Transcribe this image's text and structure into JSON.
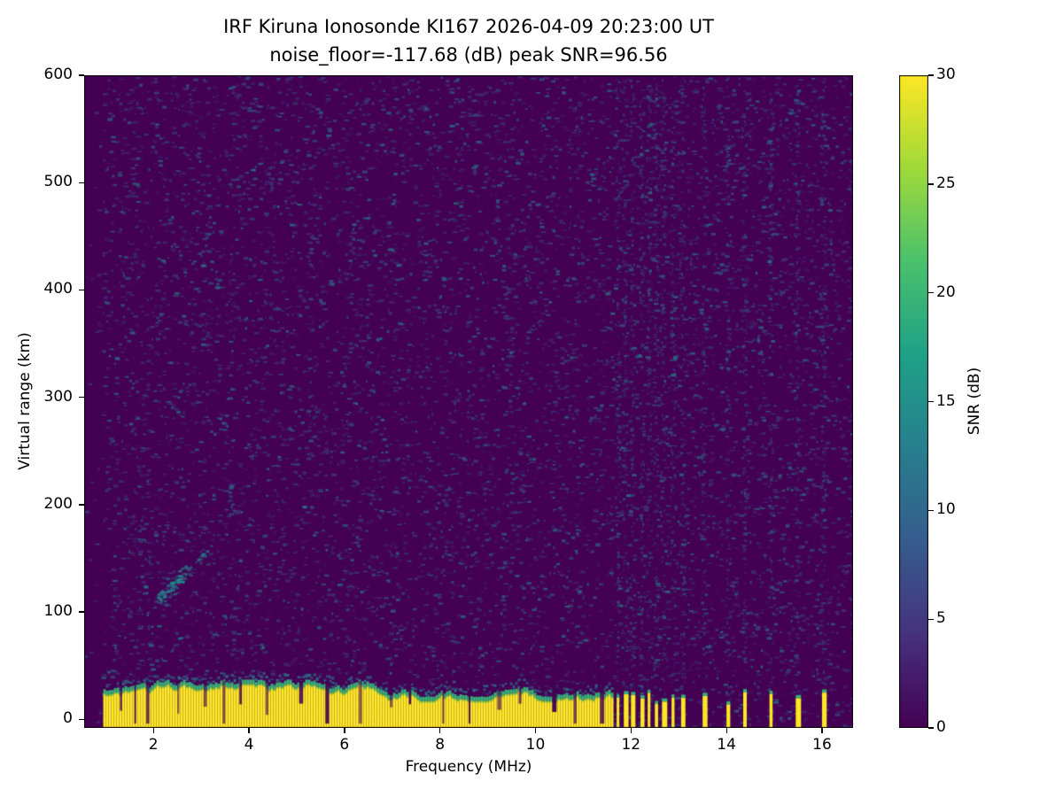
{
  "chart_data": {
    "type": "heatmap",
    "title": "IRF Kiruna Ionosonde KI167 2026-04-09 20:23:00  UT",
    "subtitle": "noise_floor=-117.68 (dB) peak SNR=96.56",
    "xlabel": "Frequency (MHz)",
    "ylabel": "Virtual range (km)",
    "x_range_mhz": [
      0.55,
      16.65
    ],
    "y_range_km": [
      -8,
      600
    ],
    "x_ticks": [
      2,
      4,
      6,
      8,
      10,
      12,
      14,
      16
    ],
    "y_ticks": [
      0,
      100,
      200,
      300,
      400,
      500,
      600
    ],
    "colorbar": {
      "label": "SNR (dB)",
      "range_db": [
        0,
        30
      ],
      "ticks": [
        0,
        5,
        10,
        15,
        20,
        25,
        30
      ],
      "colormap": "viridis"
    },
    "viridis_stops": [
      "#440154",
      "#46327e",
      "#365c8d",
      "#277f8e",
      "#1fa187",
      "#4ac16d",
      "#a0da39",
      "#fde725"
    ],
    "station": "IRF Kiruna Ionosonde KI167",
    "timestamp_ut": "2026-04-09 20:23:00 UT",
    "noise_floor_db": -117.68,
    "peak_snr_db": 96.56,
    "features": {
      "ground_clutter_band": {
        "freq_start_mhz": 0.95,
        "freq_end_mhz": 11.62,
        "range_bottom_km": -8,
        "range_top_km": 30,
        "description": "Saturated near-range return, SNR >= 30 dB, ragged top edge with green/teal transition around 25-40 km"
      },
      "band_notches_mhz": [
        1.3,
        1.6,
        1.85,
        2.5,
        3.05,
        3.45,
        3.8,
        4.35,
        5.05,
        5.6,
        6.3,
        6.95,
        7.35,
        8.05,
        8.6,
        9.2,
        9.65,
        10.35,
        10.8,
        11.35
      ],
      "rfi_stripes_mhz": [
        11.7,
        11.85,
        12.0,
        12.2,
        12.35,
        12.5,
        12.65,
        12.85,
        13.05,
        13.5,
        14.0,
        14.35,
        14.9,
        15.45,
        16.0
      ],
      "rfi_stripes_description": "Above 11.6 MHz the continuous clutter band breaks into narrow saturated vertical stripes reaching ~13-26 km, with faint full-height noise columns at the same frequencies",
      "echo_trace": {
        "freq_start_mhz": 2.1,
        "freq_end_mhz": 3.2,
        "range_start_km": 112,
        "range_end_km": 162,
        "description": "Faint oblique ionospheric echo trace rising with frequency, teal (~10-15 dB)"
      },
      "background": "Dark purple (~0-2 dB) field with sparse blue/teal speckle noise (~3-12 dB) over the whole range-frequency plane"
    },
    "render": {
      "seed": 167,
      "speckle_count": 9000,
      "background_color": "#440154",
      "speckle_colors": [
        "#3e4989",
        "#31688e",
        "#26828e",
        "#443a83",
        "#21918c"
      ]
    }
  }
}
